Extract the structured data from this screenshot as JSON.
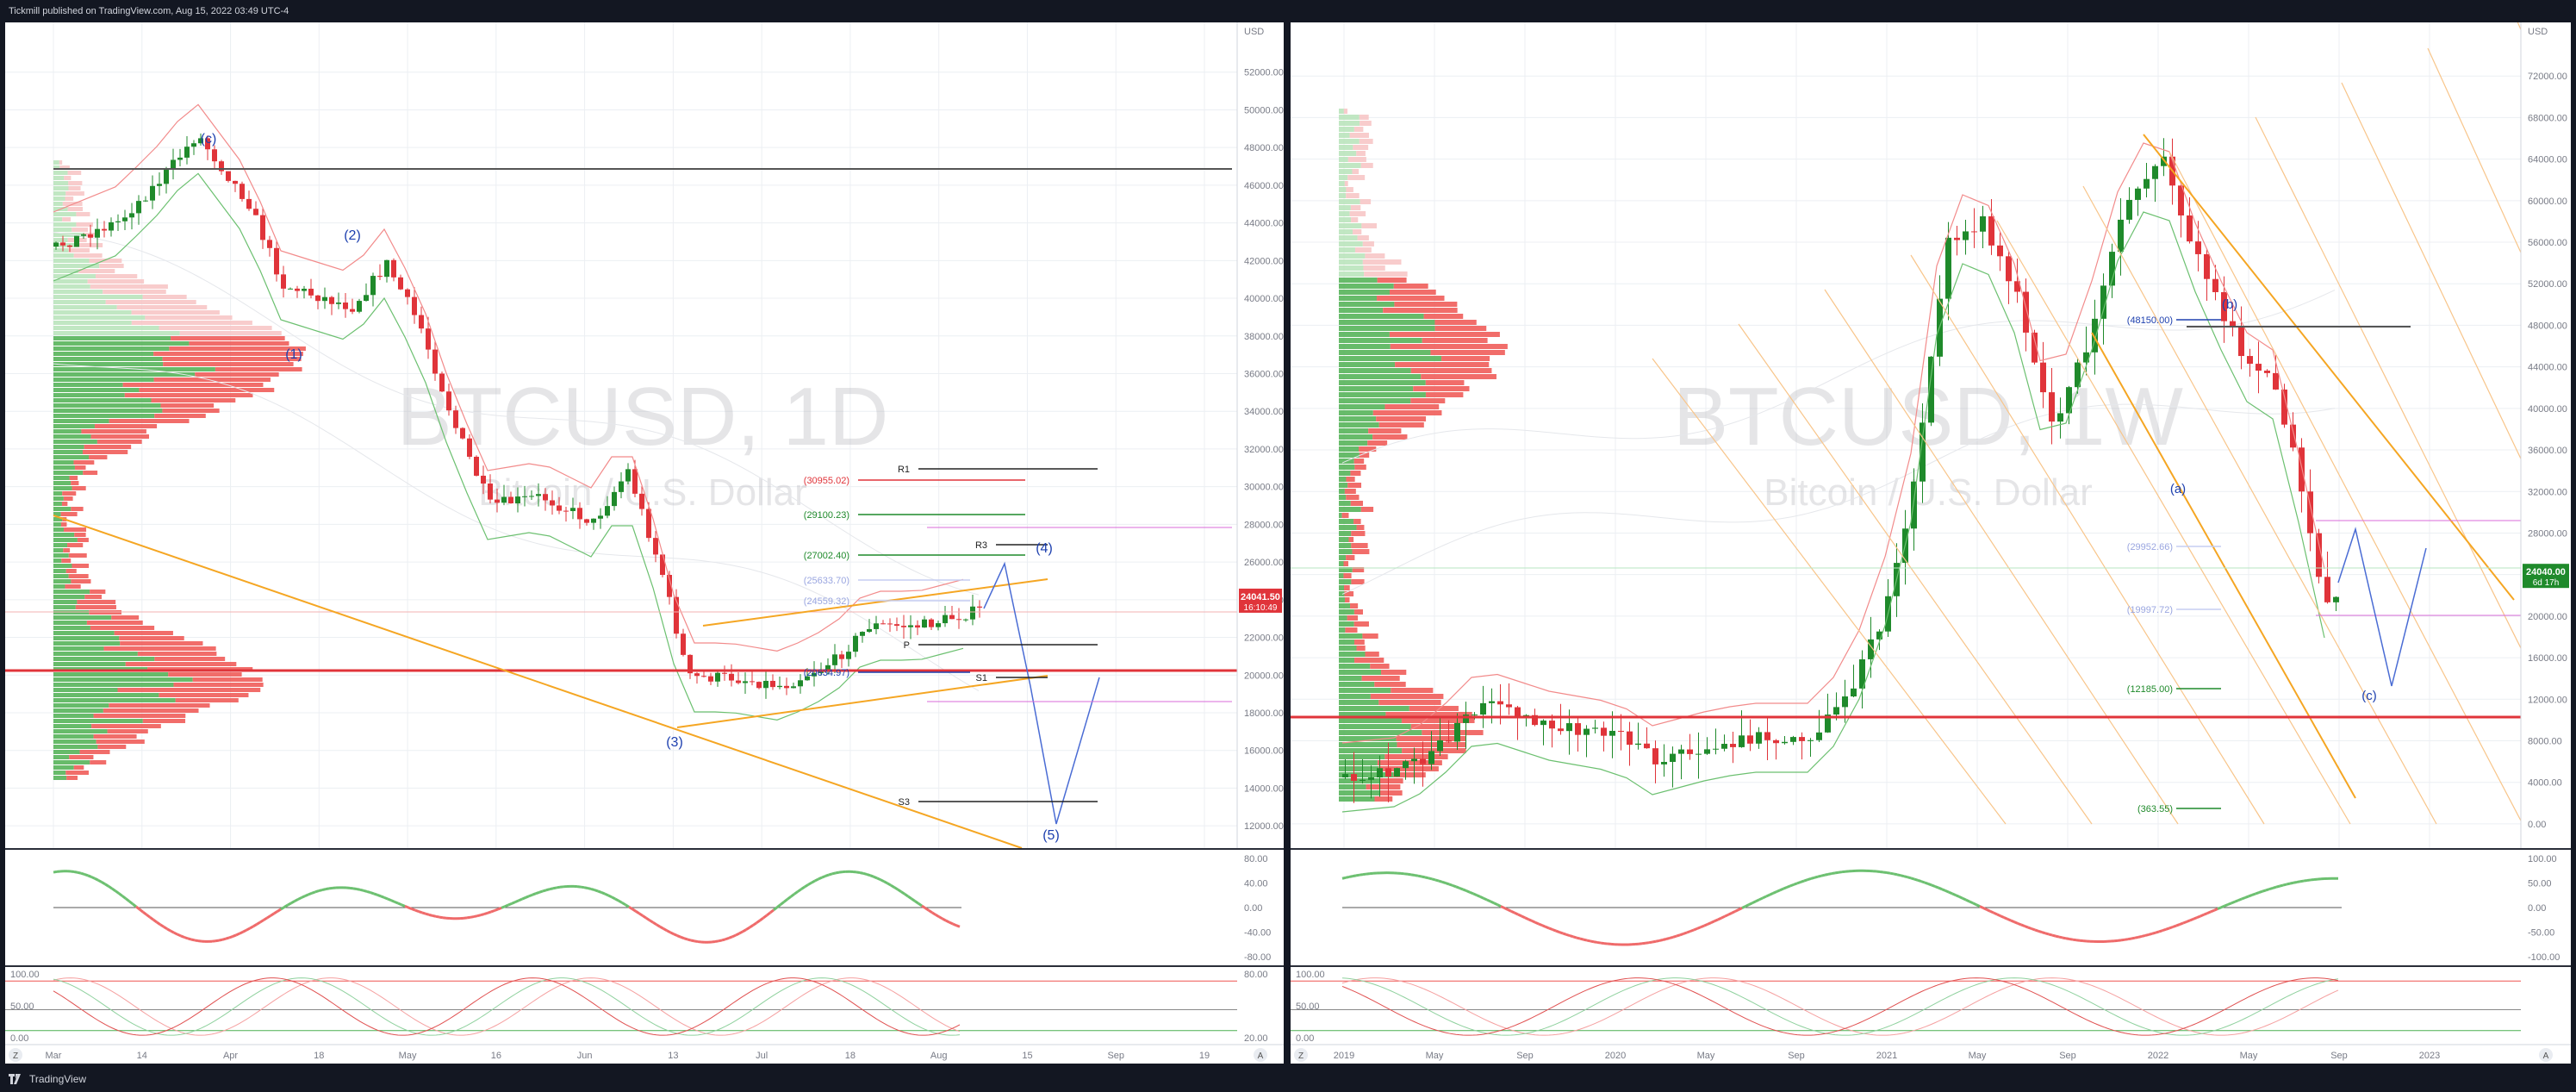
{
  "header": {
    "publisher_text": "Tickmill published on TradingView.com, Aug 15, 2022 03:49 UTC-4"
  },
  "footer": {
    "brand": "TradingView",
    "logo_icon": "tradingview-logo-icon"
  },
  "colors": {
    "bg": "#131722",
    "chart_bg": "#ffffff",
    "up": "#1f8a2b",
    "down": "#e0343a",
    "orange": "#f5a623",
    "blue": "#1e40af",
    "grid": "#eceff3"
  },
  "chart_data": [
    {
      "type": "candlestick",
      "watermark_symbol": "BTCUSD, 1D",
      "watermark_name": "Bitcoin / U.S. Dollar",
      "ylim": [
        11000,
        54000
      ],
      "y_ticks": [
        "USD",
        "52000.00",
        "50000.00",
        "48000.00",
        "46000.00",
        "44000.00",
        "42000.00",
        "40000.00",
        "38000.00",
        "36000.00",
        "34000.00",
        "32000.00",
        "30000.00",
        "28000.00",
        "26000.00",
        "24000.00",
        "22000.00",
        "20000.00",
        "18000.00",
        "16000.00",
        "14000.00",
        "12000.00"
      ],
      "x_ticks": [
        "Mar",
        "14",
        "Apr",
        "18",
        "May",
        "16",
        "Jun",
        "13",
        "Jul",
        "18",
        "Aug",
        "15",
        "Sep",
        "19"
      ],
      "price_label": "24041.50",
      "countdown_label": "16:10:49",
      "wave_labels": [
        "(c)",
        "(2)",
        "(1)",
        "(3)",
        "(4)",
        "(5)"
      ],
      "levels": [
        {
          "label": "R1",
          "value": 31500
        },
        {
          "label": "(30955.02)",
          "value": 30955.02
        },
        {
          "label": "(29100.23)",
          "value": 29100.23
        },
        {
          "label": "R3",
          "value": 27600
        },
        {
          "label": "(27002.40)",
          "value": 27002.4
        },
        {
          "label": "(25633.70)",
          "value": 25633.7
        },
        {
          "label": "(24559.32)",
          "value": 24559.32
        },
        {
          "label": "P",
          "value": 22200
        },
        {
          "label": "(20634.97)",
          "value": 20634.97
        },
        {
          "label": "S1",
          "value": 20634.97
        },
        {
          "label": "S3",
          "value": 13800
        }
      ],
      "osc1_ticks": [
        "80.00",
        "40.00",
        "0.00",
        "-40.00",
        "-80.00"
      ],
      "osc2_ticks": [
        "100.00",
        "50.00",
        "0.00"
      ],
      "osc2_right_ticks": [
        "80.00",
        "20.00"
      ],
      "axis_buttons": [
        "Z",
        "A"
      ]
    },
    {
      "type": "candlestick",
      "watermark_symbol": "BTCUSD, 1W",
      "watermark_name": "Bitcoin / U.S. Dollar",
      "ylim": [
        -2000,
        76000
      ],
      "y_ticks": [
        "USD",
        "72000.00",
        "68000.00",
        "64000.00",
        "60000.00",
        "56000.00",
        "52000.00",
        "48000.00",
        "44000.00",
        "40000.00",
        "36000.00",
        "32000.00",
        "28000.00",
        "24000.00",
        "20000.00",
        "16000.00",
        "12000.00",
        "8000.00",
        "4000.00",
        "0.00"
      ],
      "x_ticks": [
        "2019",
        "May",
        "Sep",
        "2020",
        "May",
        "Sep",
        "2021",
        "May",
        "Sep",
        "2022",
        "May",
        "Sep",
        "2023"
      ],
      "price_label": "24040.00",
      "countdown_label": "6d 17h",
      "wave_labels": [
        "(b)",
        "(a)",
        "(c)"
      ],
      "levels": [
        {
          "label": "(48150.00)",
          "value": 48150
        },
        {
          "label": "(29952.66)",
          "value": 29952.66
        },
        {
          "label": "(19997.72)",
          "value": 19997.72
        },
        {
          "label": "(12185.00)",
          "value": 12185.0
        },
        {
          "label": "(363.55)",
          "value": 363.55
        }
      ],
      "osc1_ticks": [
        "100.00",
        "50.00",
        "0.00",
        "-50.00",
        "-100.00"
      ],
      "osc2_ticks": [
        "100.00",
        "50.00",
        "0.00"
      ],
      "axis_buttons": [
        "Z",
        "A"
      ]
    }
  ]
}
